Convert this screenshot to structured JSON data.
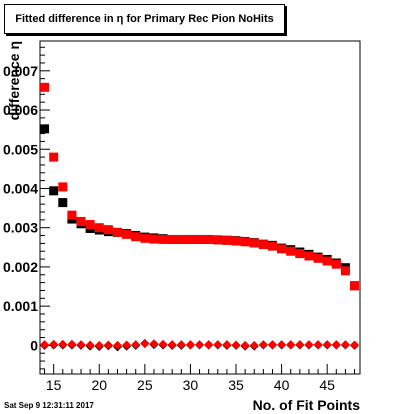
{
  "chart_data": {
    "type": "scatter",
    "title": "Fitted difference in  η for Primary Rec Pion NoHits",
    "xlabel": "No. of Fit Points",
    "ylabel": "difference  η",
    "xlim": [
      13.5,
      48.6
    ],
    "ylim": [
      -0.00073,
      0.00776
    ],
    "xticks": [
      15,
      20,
      25,
      30,
      35,
      40,
      45
    ],
    "yticks": [
      0,
      0.001,
      0.002,
      0.003,
      0.004,
      0.005,
      0.006,
      0.007
    ],
    "ytick_labels": [
      "0",
      "0.001",
      "0.002",
      "0.003",
      "0.004",
      "0.005",
      "0.006",
      "0.007"
    ],
    "xtick_labels": [
      "15",
      "20",
      "25",
      "30",
      "35",
      "40",
      "45"
    ],
    "grid": false,
    "series": [
      {
        "color": "#000000",
        "marker": "square",
        "x": [
          14,
          15,
          16,
          17,
          18,
          19,
          20,
          21,
          22,
          23,
          24,
          25,
          26,
          27,
          28,
          29,
          30,
          31,
          32,
          33,
          34,
          35,
          36,
          37,
          38,
          39,
          40,
          41,
          42,
          43,
          44,
          45,
          46,
          47,
          48
        ],
        "y": [
          0.00552,
          0.00394,
          0.00364,
          0.00322,
          0.0031,
          0.00298,
          0.00294,
          0.0029,
          0.00288,
          0.00285,
          0.0028,
          0.00276,
          0.00274,
          0.00272,
          0.0027,
          0.0027,
          0.0027,
          0.0027,
          0.0027,
          0.00269,
          0.00268,
          0.00267,
          0.00265,
          0.00262,
          0.00258,
          0.00255,
          0.00248,
          0.00244,
          0.00238,
          0.00232,
          0.00225,
          0.00219,
          0.0021,
          0.00198,
          0.00152
        ]
      },
      {
        "color": "#ff0000",
        "marker": "square",
        "x": [
          14,
          15,
          16,
          17,
          18,
          19,
          20,
          21,
          22,
          23,
          24,
          25,
          26,
          27,
          28,
          29,
          30,
          31,
          32,
          33,
          34,
          35,
          36,
          37,
          38,
          39,
          40,
          41,
          42,
          43,
          44,
          45,
          46,
          47,
          48
        ],
        "y": [
          0.00658,
          0.0048,
          0.00404,
          0.00332,
          0.00316,
          0.00308,
          0.003,
          0.00295,
          0.00288,
          0.00283,
          0.00277,
          0.00273,
          0.00271,
          0.0027,
          0.0027,
          0.0027,
          0.0027,
          0.0027,
          0.0027,
          0.00269,
          0.00268,
          0.00266,
          0.00264,
          0.00261,
          0.00257,
          0.00253,
          0.00246,
          0.0024,
          0.00234,
          0.00228,
          0.00222,
          0.00215,
          0.00207,
          0.0019,
          0.00152
        ]
      },
      {
        "color": "#000000",
        "marker": "diamond",
        "x": [
          14,
          15,
          16,
          17,
          18,
          19,
          20,
          21,
          22,
          23,
          24,
          25,
          26,
          27,
          28,
          29,
          30,
          31,
          32,
          33,
          34,
          35,
          36,
          37,
          38,
          39,
          40,
          41,
          42,
          43,
          44,
          45,
          46,
          47,
          48
        ],
        "y": [
          0.0,
          1e-05,
          1e-05,
          1e-05,
          0.0,
          -2e-05,
          -3e-05,
          -1e-05,
          -4e-05,
          -2e-05,
          0.0,
          5e-05,
          2e-05,
          1e-05,
          0.0,
          0.0,
          1e-05,
          1e-05,
          1e-05,
          1e-05,
          0.0,
          0.0,
          -2e-05,
          -2e-05,
          1e-05,
          1e-05,
          1e-05,
          1e-05,
          1e-05,
          1e-05,
          1e-05,
          1e-05,
          1e-05,
          1e-05,
          0.0
        ]
      },
      {
        "color": "#ff0000",
        "marker": "diamond",
        "x": [
          14,
          15,
          16,
          17,
          18,
          19,
          20,
          21,
          22,
          23,
          24,
          25,
          26,
          27,
          28,
          29,
          30,
          31,
          32,
          33,
          34,
          35,
          36,
          37,
          38,
          39,
          40,
          41,
          42,
          43,
          44,
          45,
          46,
          47,
          48
        ],
        "y": [
          2e-05,
          3e-05,
          3e-05,
          3e-05,
          2e-05,
          1e-05,
          0.0,
          1e-05,
          0.0,
          1e-05,
          2e-05,
          4e-05,
          4e-05,
          3e-05,
          2e-05,
          2e-05,
          2e-05,
          2e-05,
          2e-05,
          2e-05,
          2e-05,
          1e-05,
          0.0,
          0.0,
          2e-05,
          2e-05,
          2e-05,
          2e-05,
          2e-05,
          2e-05,
          2e-05,
          2e-05,
          2e-05,
          2e-05,
          1e-05
        ]
      }
    ]
  },
  "timestamp": "Sat Sep  9 12:31:11 2017"
}
